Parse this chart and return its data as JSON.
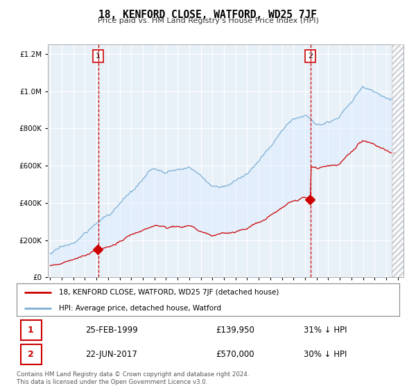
{
  "title": "18, KENFORD CLOSE, WATFORD, WD25 7JF",
  "subtitle": "Price paid vs. HM Land Registry's House Price Index (HPI)",
  "hpi_label": "HPI: Average price, detached house, Watford",
  "property_label": "18, KENFORD CLOSE, WATFORD, WD25 7JF (detached house)",
  "sale1_date": "25-FEB-1999",
  "sale1_price": 139950,
  "sale1_hpi": "31% ↓ HPI",
  "sale2_date": "22-JUN-2017",
  "sale2_price": 570000,
  "sale2_hpi": "30% ↓ HPI",
  "sale1_year": 1999.15,
  "sale2_year": 2017.47,
  "copyright": "Contains HM Land Registry data © Crown copyright and database right 2024.\nThis data is licensed under the Open Government Licence v3.0.",
  "ylim": [
    0,
    1250000
  ],
  "xlim_start": 1994.8,
  "xlim_end": 2025.5,
  "hpi_color": "#7bafd4",
  "property_color": "#cc0000",
  "grid_color": "#cccccc",
  "background_color": "#ffffff",
  "fill_color": "#ddeeff",
  "vline_color": "#cc0000",
  "hatch_start": 2024.5
}
